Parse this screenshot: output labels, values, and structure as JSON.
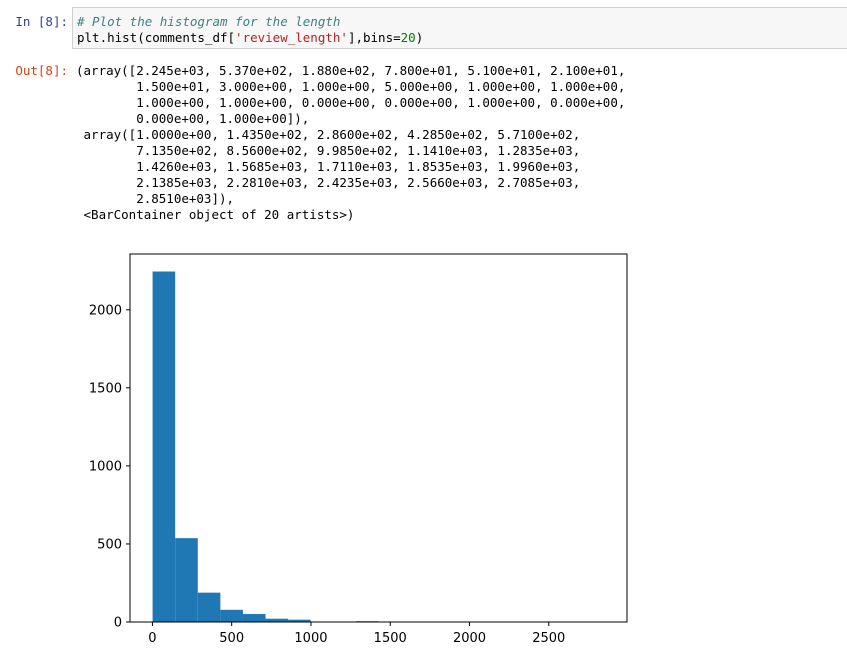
{
  "input_cell": {
    "prompt": "In [8]:",
    "comment": "# Plot the histogram for the length",
    "code_prefix": "plt.hist(comments_df[",
    "code_string": "'review_length'",
    "code_mid": "],bins=",
    "code_number": "20",
    "code_suffix": ")"
  },
  "output_cell": {
    "prompt": "Out[8]:",
    "lines": [
      "(array([2.245e+03, 5.370e+02, 1.880e+02, 7.800e+01, 5.100e+01, 2.100e+01,",
      "        1.500e+01, 3.000e+00, 1.000e+00, 5.000e+00, 1.000e+00, 1.000e+00,",
      "        1.000e+00, 1.000e+00, 0.000e+00, 0.000e+00, 1.000e+00, 0.000e+00,",
      "        0.000e+00, 1.000e+00]),",
      " array([1.0000e+00, 1.4350e+02, 2.8600e+02, 4.2850e+02, 5.7100e+02,",
      "        7.1350e+02, 8.5600e+02, 9.9850e+02, 1.1410e+03, 1.2835e+03,",
      "        1.4260e+03, 1.5685e+03, 1.7110e+03, 1.8535e+03, 1.9960e+03,",
      "        2.1385e+03, 2.2810e+03, 2.4235e+03, 2.5660e+03, 2.7085e+03,",
      "        2.8510e+03]),",
      " <BarContainer object of 20 artists>)"
    ]
  },
  "chart_data": {
    "type": "bar",
    "bin_edges": [
      1.0,
      143.5,
      286.0,
      428.5,
      571.0,
      713.5,
      856.0,
      998.5,
      1141.0,
      1283.5,
      1426.0,
      1568.5,
      1711.0,
      1853.5,
      1996.0,
      2138.5,
      2281.0,
      2423.5,
      2566.0,
      2708.5,
      2851.0
    ],
    "values": [
      2245,
      537,
      188,
      78,
      51,
      21,
      15,
      3,
      1,
      5,
      1,
      1,
      1,
      1,
      0,
      0,
      1,
      0,
      0,
      1
    ],
    "title": "",
    "xlabel": "",
    "ylabel": "",
    "xlim": [
      -141.5,
      2993.5
    ],
    "ylim": [
      0,
      2357.25
    ],
    "xticks": [
      0,
      500,
      1000,
      1500,
      2000,
      2500
    ],
    "xtick_labels": [
      "0",
      "500",
      "1000",
      "1500",
      "2000",
      "2500"
    ],
    "yticks": [
      0,
      500,
      1000,
      1500,
      2000
    ],
    "ytick_labels": [
      "0",
      "500",
      "1000",
      "1500",
      "2000"
    ],
    "bar_color": "#1f77b4",
    "grid": false
  }
}
